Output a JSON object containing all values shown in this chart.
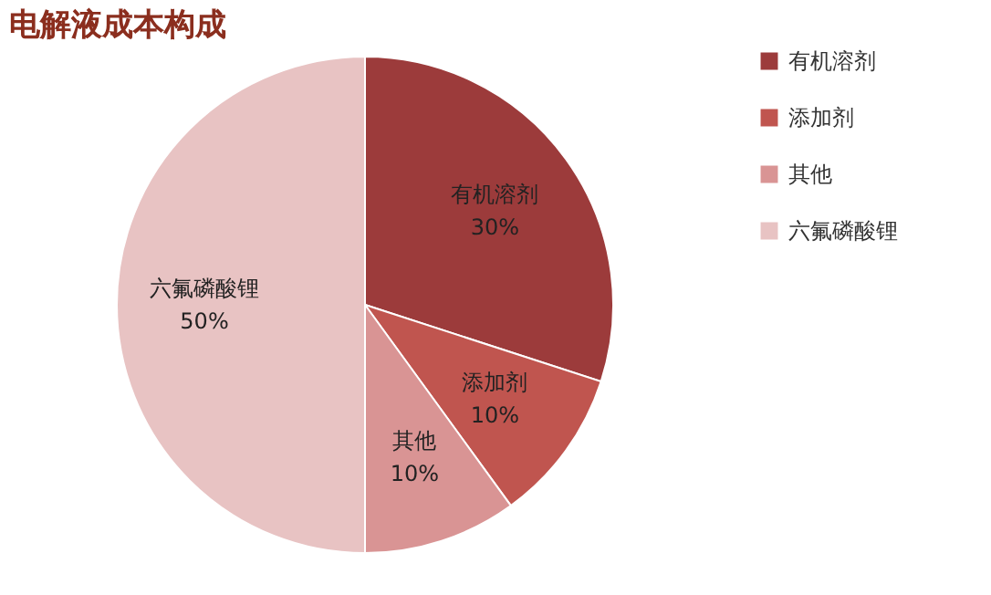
{
  "chart_data": {
    "type": "pie",
    "title": "电解液成本构成",
    "categories": [
      "有机溶剂",
      "添加剂",
      "其他",
      "六氟磷酸锂"
    ],
    "values": [
      30,
      10,
      10,
      50
    ],
    "colors": [
      "#9c3b3b",
      "#c0554f",
      "#d99494",
      "#e8c3c3"
    ],
    "value_labels": [
      "30%",
      "10%",
      "10%",
      "50%"
    ],
    "legend": "right"
  }
}
